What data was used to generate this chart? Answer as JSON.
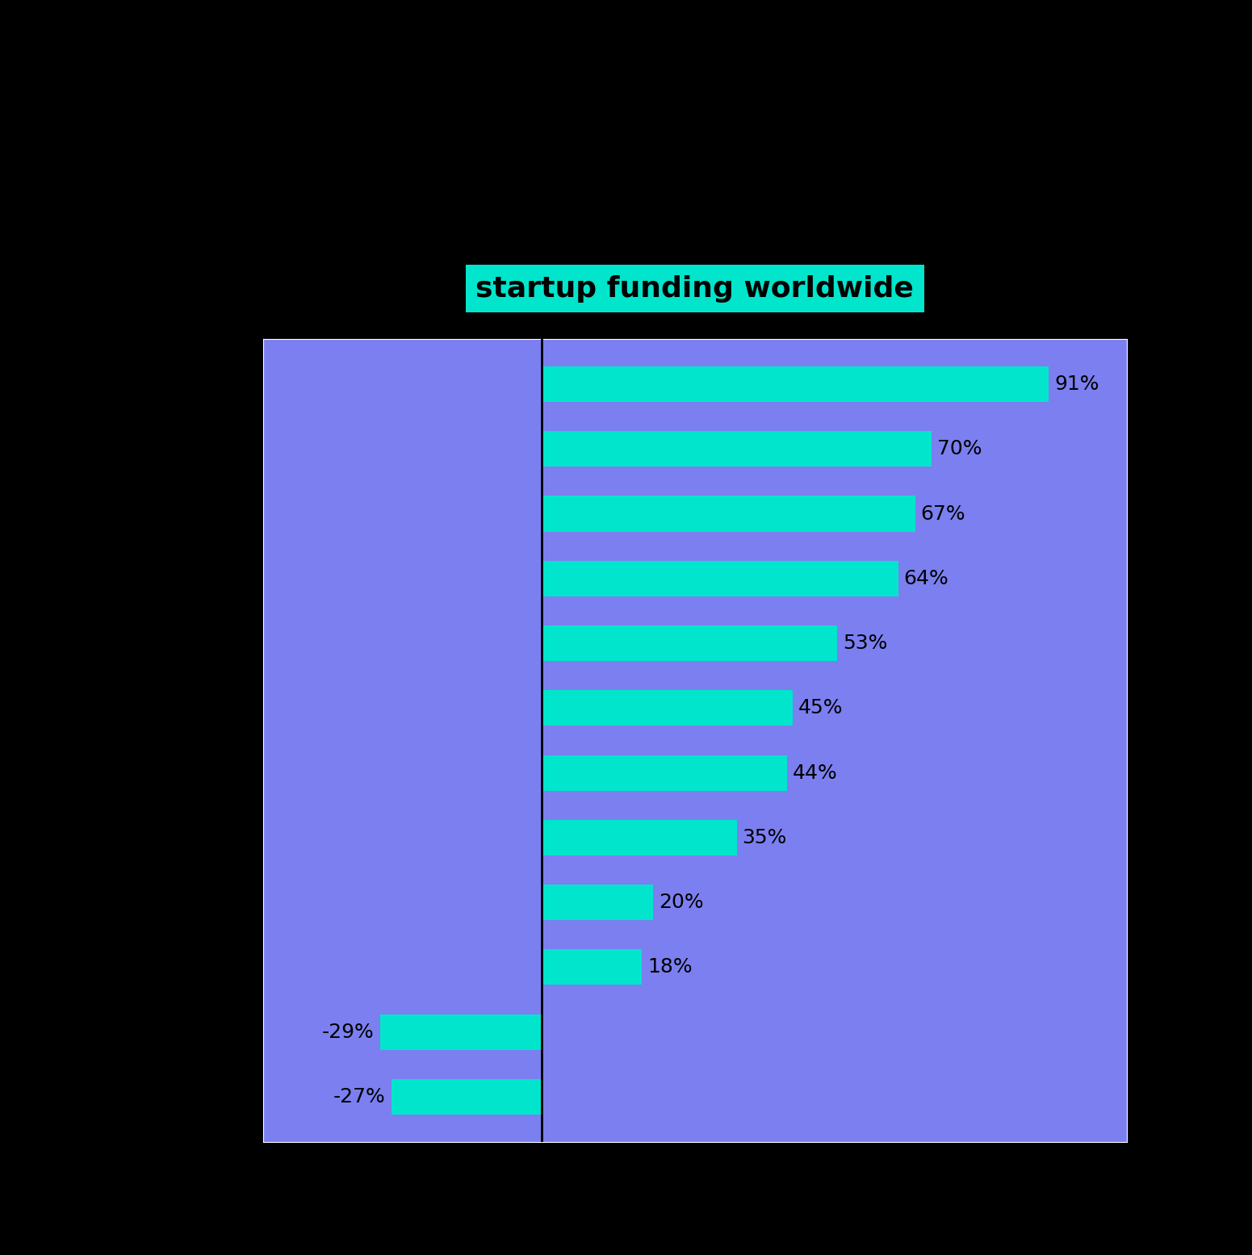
{
  "title": "startup funding worldwide",
  "title_bg_color": "#00e5cc",
  "title_fontsize": 26,
  "background_color": "#000000",
  "plot_bg_color": "#7b7ff0",
  "bar_color": "#00e5cc",
  "bar_values": [
    91,
    70,
    67,
    64,
    53,
    45,
    44,
    35,
    20,
    18,
    -29,
    -27
  ],
  "bar_labels": [
    "91%",
    "70%",
    "67%",
    "64%",
    "53%",
    "45%",
    "44%",
    "35%",
    "20%",
    "18%",
    "-29%",
    "-27%"
  ],
  "label_fontsize": 18,
  "text_color": "#000000",
  "zero_line_color": "#000000",
  "grid_color": "#ffffff",
  "xlim": [
    -50,
    105
  ]
}
